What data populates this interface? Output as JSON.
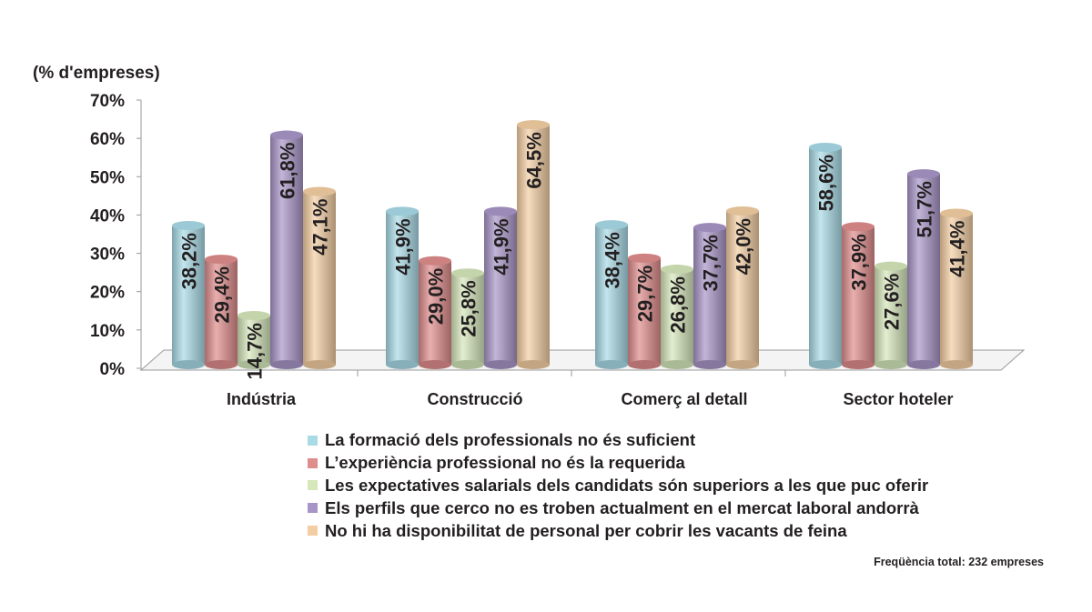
{
  "chart_data": {
    "type": "bar",
    "ylabel": "(% d'empreses)",
    "ylim": [
      0,
      70
    ],
    "yticks": [
      "0%",
      "10%",
      "20%",
      "30%",
      "40%",
      "50%",
      "60%",
      "70%"
    ],
    "categories": [
      "Indústria",
      "Construcció",
      "Comerç al detall",
      "Sector hoteler"
    ],
    "series": [
      {
        "name": "La formació dels professionals no és suficient",
        "color": "#a9dbe7",
        "values": [
          38.2,
          41.9,
          38.4,
          58.6
        ],
        "labels": [
          "38,2%",
          "41,9%",
          "38,4%",
          "58,6%"
        ]
      },
      {
        "name": "L’experiència professional no és la requerida",
        "color": "#df8c8c",
        "values": [
          29.4,
          29.0,
          29.7,
          37.9
        ],
        "labels": [
          "29,4%",
          "29,0%",
          "29,7%",
          "37,9%"
        ]
      },
      {
        "name": "Les expectatives salarials dels candidats són superiors a les que puc oferir",
        "color": "#d5e7bb",
        "values": [
          14.7,
          25.8,
          26.8,
          27.6
        ],
        "labels": [
          "14,7%",
          "25,8%",
          "26,8%",
          "27,6%"
        ]
      },
      {
        "name": "Els perfils que cerco no es troben actualment en el mercat laboral andorrà",
        "color": "#a895c7",
        "values": [
          61.8,
          41.9,
          37.7,
          51.7
        ],
        "labels": [
          "61,8%",
          "41,9%",
          "37,7%",
          "51,7%"
        ]
      },
      {
        "name": "No hi ha disponibilitat de personal per cobrir les vacants de feina",
        "color": "#f4cea3",
        "values": [
          47.1,
          64.5,
          42.0,
          41.4
        ],
        "labels": [
          "47,1%",
          "64,5%",
          "42,0%",
          "41,4%"
        ]
      }
    ],
    "legend_position": "bottom",
    "footnote": "Freqüència total: 232 empreses"
  }
}
